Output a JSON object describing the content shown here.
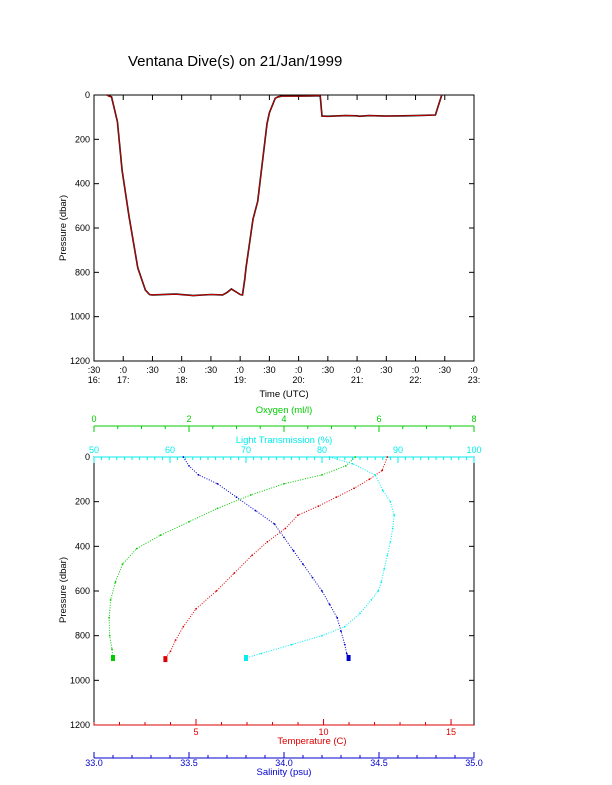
{
  "title": "Ventana Dive(s) on 21/Jan/1999",
  "colors": {
    "axis": "#000000",
    "pressure_trace": "#000000",
    "pressure_trace_overlay": "#ff0000",
    "temperature": "#dd0000",
    "oxygen": "#00cc00",
    "light_transmission": "#00eeee",
    "salinity": "#0000cc"
  },
  "chart_data": [
    {
      "type": "line",
      "title": "Ventana Dive(s) on 21/Jan/1999",
      "xlabel": "Time (UTC)",
      "ylabel": "Pressure (dbar)",
      "xlim": [
        16.5,
        23.0
      ],
      "ylim": [
        1200,
        0
      ],
      "yticks": [
        "0",
        "200",
        "400",
        "600",
        "800",
        "1000",
        "1200"
      ],
      "xticks": [
        {
          "minute": ":30",
          "hour": "16:"
        },
        {
          "minute": ":0",
          "hour": "17:"
        },
        {
          "minute": ":30",
          "hour": ""
        },
        {
          "minute": ":0",
          "hour": "18:"
        },
        {
          "minute": ":30",
          "hour": ""
        },
        {
          "minute": ":0",
          "hour": "19:"
        },
        {
          "minute": ":30",
          "hour": ""
        },
        {
          "minute": ":0",
          "hour": "20:"
        },
        {
          "minute": ":30",
          "hour": ""
        },
        {
          "minute": ":0",
          "hour": "21:"
        },
        {
          "minute": ":30",
          "hour": ""
        },
        {
          "minute": ":0",
          "hour": "22:"
        },
        {
          "minute": ":30",
          "hour": ""
        },
        {
          "minute": ":0",
          "hour": "23:"
        }
      ],
      "x": [
        16.72,
        16.76,
        16.8,
        16.9,
        16.98,
        17.1,
        17.25,
        17.38,
        17.45,
        17.5,
        17.9,
        18.2,
        18.5,
        18.7,
        18.78,
        18.85,
        19.0,
        19.04,
        19.08,
        19.1,
        19.22,
        19.3,
        19.46,
        19.5,
        19.6,
        19.65,
        19.72,
        20.0,
        20.2,
        20.37,
        20.4,
        20.5,
        20.8,
        21.0,
        21.04,
        21.2,
        21.5,
        21.8,
        22.1,
        22.34,
        22.4,
        22.45
      ],
      "y": [
        0,
        5,
        8,
        120,
        340,
        550,
        780,
        880,
        900,
        902,
        898,
        905,
        900,
        902,
        890,
        875,
        900,
        902,
        830,
        780,
        560,
        480,
        130,
        80,
        15,
        8,
        5,
        5,
        4,
        3,
        95,
        96,
        93,
        94,
        96,
        93,
        95,
        94,
        92,
        90,
        40,
        0
      ]
    },
    {
      "type": "scatter",
      "ylabel": "Pressure (dbar)",
      "ylim": [
        1200,
        0
      ],
      "yticks": [
        "0",
        "200",
        "400",
        "600",
        "800",
        "1000",
        "1200"
      ],
      "axes": {
        "oxygen": {
          "label": "Oxygen (ml/l)",
          "lim": [
            0,
            8
          ],
          "ticks": [
            "0",
            "2",
            "4",
            "6",
            "8"
          ]
        },
        "light_transmission": {
          "label": "Light Transmission (%)",
          "lim": [
            50,
            100
          ],
          "ticks": [
            "50",
            "60",
            "70",
            "80",
            "90",
            "100"
          ]
        },
        "temperature": {
          "label": "Temperature (C)",
          "lim": [
            1,
            15.9
          ],
          "ticks": [
            "5",
            "10",
            "15"
          ]
        },
        "salinity": {
          "label": "Salinity (psu)",
          "lim": [
            33.0,
            35.0
          ],
          "ticks": [
            "33.0",
            "33.5",
            "34.0",
            "34.5",
            "35.0"
          ]
        }
      },
      "series": [
        {
          "name": "Temperature (C)",
          "axis": "temperature",
          "x": [
            12.5,
            12.3,
            11.8,
            11.2,
            10.5,
            9.8,
            9.0,
            8.5,
            7.8,
            7.2,
            6.5,
            5.8,
            5.0,
            4.5,
            4.2,
            4.0,
            3.8,
            3.8
          ],
          "y": [
            0,
            60,
            100,
            140,
            180,
            220,
            260,
            320,
            380,
            440,
            520,
            600,
            680,
            760,
            820,
            870,
            900,
            905
          ]
        },
        {
          "name": "Salinity (psu)",
          "axis": "salinity",
          "x": [
            33.47,
            33.5,
            33.55,
            33.65,
            33.75,
            33.85,
            33.95,
            34.0,
            34.05,
            34.1,
            34.15,
            34.2,
            34.24,
            34.28,
            34.3,
            34.32,
            34.33,
            34.34
          ],
          "y": [
            0,
            40,
            80,
            120,
            180,
            240,
            300,
            360,
            420,
            480,
            540,
            600,
            660,
            720,
            780,
            840,
            880,
            900
          ]
        },
        {
          "name": "Oxygen (ml/l)",
          "axis": "oxygen",
          "x": [
            5.5,
            5.3,
            4.8,
            4.0,
            3.3,
            2.6,
            2.0,
            1.4,
            0.9,
            0.6,
            0.45,
            0.35,
            0.32,
            0.33,
            0.38,
            0.4
          ],
          "y": [
            0,
            40,
            80,
            120,
            170,
            230,
            290,
            350,
            410,
            480,
            560,
            640,
            720,
            800,
            860,
            900
          ]
        },
        {
          "name": "Light Transmission (%)",
          "axis": "light_transmission",
          "x": [
            81,
            84,
            87,
            88,
            89,
            89.5,
            89.3,
            89,
            88.6,
            88.2,
            87.8,
            87.4,
            86.5,
            85,
            83,
            80,
            76,
            72,
            70
          ],
          "y": [
            0,
            30,
            80,
            150,
            200,
            260,
            320,
            380,
            440,
            500,
            560,
            600,
            640,
            700,
            760,
            800,
            840,
            880,
            900
          ]
        }
      ]
    }
  ]
}
